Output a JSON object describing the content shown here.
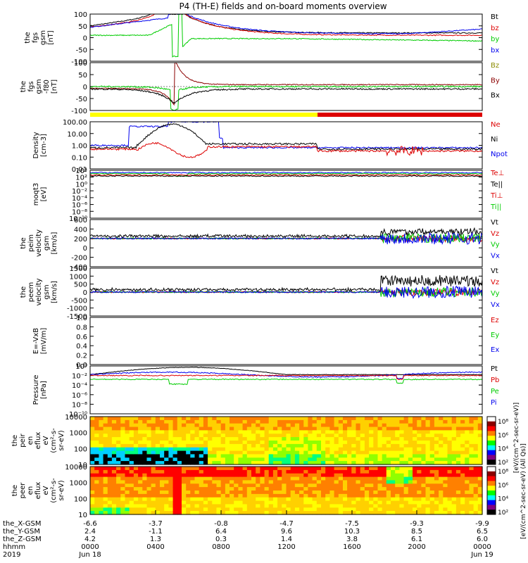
{
  "chart_data": {
    "type": "line",
    "title": "P4 (TH-E) fields and on-board moments overview",
    "colors": {
      "black": "#000000",
      "red": "#dd0000",
      "green": "#00cc00",
      "blue": "#0000ee",
      "darkred": "#8b0000",
      "olive": "#8b8b00",
      "yellow": "#ffff00"
    },
    "panels": [
      {
        "id": "fgs-gsm",
        "ylabel": [
          "the",
          "fgs",
          "gsm",
          "[nT]"
        ],
        "ticks": [
          "100",
          "50",
          "0",
          "-50",
          "-100"
        ],
        "legend": [
          "Bt",
          "bz",
          "by",
          "bx"
        ],
        "legend_colors": [
          "black",
          "red",
          "green",
          "blue"
        ]
      },
      {
        "id": "fgs-gsm-f",
        "ylabel": [
          "the",
          "fgs",
          "gsm",
          "-f80",
          "[nT]"
        ],
        "ticks": [
          "100",
          "50",
          "0",
          "-50",
          "-100"
        ],
        "legend": [
          "Bz",
          "By",
          "Bx"
        ],
        "legend_colors": [
          "olive",
          "darkred",
          "black"
        ]
      },
      {
        "id": "density",
        "ylabel": [
          "Density",
          "[cm-3]"
        ],
        "ticks": [
          "100.00",
          "10.00",
          "1.00",
          "0.10",
          "0.01"
        ],
        "legend": [
          "Ne",
          "Ni",
          "Npot"
        ],
        "legend_colors": [
          "red",
          "black",
          "blue"
        ]
      },
      {
        "id": "moqt3",
        "ylabel": [
          "moqt3",
          "[eV]"
        ],
        "ticks": [
          "10⁴",
          "10²",
          "10⁰",
          "10⁻²",
          "10⁻⁴",
          "10⁻⁶",
          "10⁻⁸",
          "10⁻¹⁰"
        ],
        "legend": [
          "Te⊥",
          "Te||",
          "Ti⊥",
          "Ti||"
        ],
        "legend_colors": [
          "red",
          "black",
          "red",
          "green"
        ]
      },
      {
        "id": "peim-velocity",
        "ylabel": [
          "the",
          "peim",
          "velocity",
          "gsm",
          "[km/s]"
        ],
        "ticks": [
          "600",
          "400",
          "200",
          "0",
          "-200",
          "-400"
        ],
        "legend": [
          "Vt",
          "Vz",
          "Vy",
          "Vx"
        ],
        "legend_colors": [
          "black",
          "red",
          "green",
          "blue"
        ]
      },
      {
        "id": "peem-velocity",
        "ylabel": [
          "the",
          "peem",
          "velocity",
          "gsm",
          "[km/s]"
        ],
        "ticks": [
          "1500",
          "1000",
          "500",
          "0",
          "-500",
          "-1000",
          "-1500"
        ],
        "legend": [
          "Vt",
          "Vz",
          "Vy",
          "Vx"
        ],
        "legend_colors": [
          "black",
          "red",
          "green",
          "blue"
        ]
      },
      {
        "id": "efield",
        "ylabel": [
          "E=-VxB",
          "[mV/m]"
        ],
        "ticks": [
          "1.0",
          "0.8",
          "0.6",
          "0.4",
          "0.2",
          "0.0"
        ],
        "legend": [
          "Ez",
          "Ey",
          "Ex"
        ],
        "legend_colors": [
          "red",
          "green",
          "blue"
        ]
      },
      {
        "id": "pressure",
        "ylabel": [
          "Pressure",
          "[nPa]"
        ],
        "ticks": [
          "10⁰",
          "10⁻²",
          "10⁻⁴",
          "10⁻⁶",
          "10⁻⁸",
          "10⁻¹⁰"
        ],
        "legend": [
          "Pt",
          "Pb",
          "Pe",
          "Pi"
        ],
        "legend_colors": [
          "black",
          "red",
          "green",
          "blue"
        ]
      },
      {
        "id": "peir-flux",
        "ylabel": [
          "the",
          "peir",
          "en",
          "eflux",
          "eV",
          "(cm²-s-",
          "sr-eV)"
        ],
        "ticks": [
          "10000",
          "1000",
          "100",
          "10"
        ],
        "colorbar": [
          "10⁸",
          "10⁶",
          "10⁴",
          "10²"
        ]
      },
      {
        "id": "peer-flux",
        "ylabel": [
          "the",
          "peer",
          "en",
          "eflux",
          "eV",
          "(cm²-s-",
          "sr-eV)"
        ],
        "ticks": [
          "10000",
          "1000",
          "100",
          "10"
        ],
        "colorbar": [
          "10⁸",
          "10⁶",
          "10⁴",
          "10²"
        ]
      }
    ],
    "colorbar_label": "[eV/(cm^2-sec-sr-eV)]",
    "colorbar_label2": "[eV/(cm^2-sec-sr-eV) (All Qs)]",
    "x_rows": [
      {
        "label": "the_X-GSM",
        "values": [
          "-6.6",
          "-3.7",
          "-0.8",
          "-4.7",
          "-7.5",
          "-9.3",
          "-9.9"
        ]
      },
      {
        "label": "the_Y-GSM",
        "values": [
          "2.4",
          "-1.1",
          "6.4",
          "9.6",
          "10.3",
          "8.5",
          "6.5"
        ]
      },
      {
        "label": "the_Z-GSM",
        "values": [
          "4.2",
          "1.3",
          "0.3",
          "1.4",
          "3.8",
          "6.1",
          "6.0"
        ]
      },
      {
        "label": "hhmm",
        "values": [
          "0000",
          "0400",
          "0800",
          "1200",
          "1600",
          "2000",
          "0000"
        ]
      },
      {
        "label": "2019",
        "values": [
          "Jun 18",
          "",
          "",
          "",
          "",
          "",
          "Jun 19"
        ]
      }
    ]
  }
}
